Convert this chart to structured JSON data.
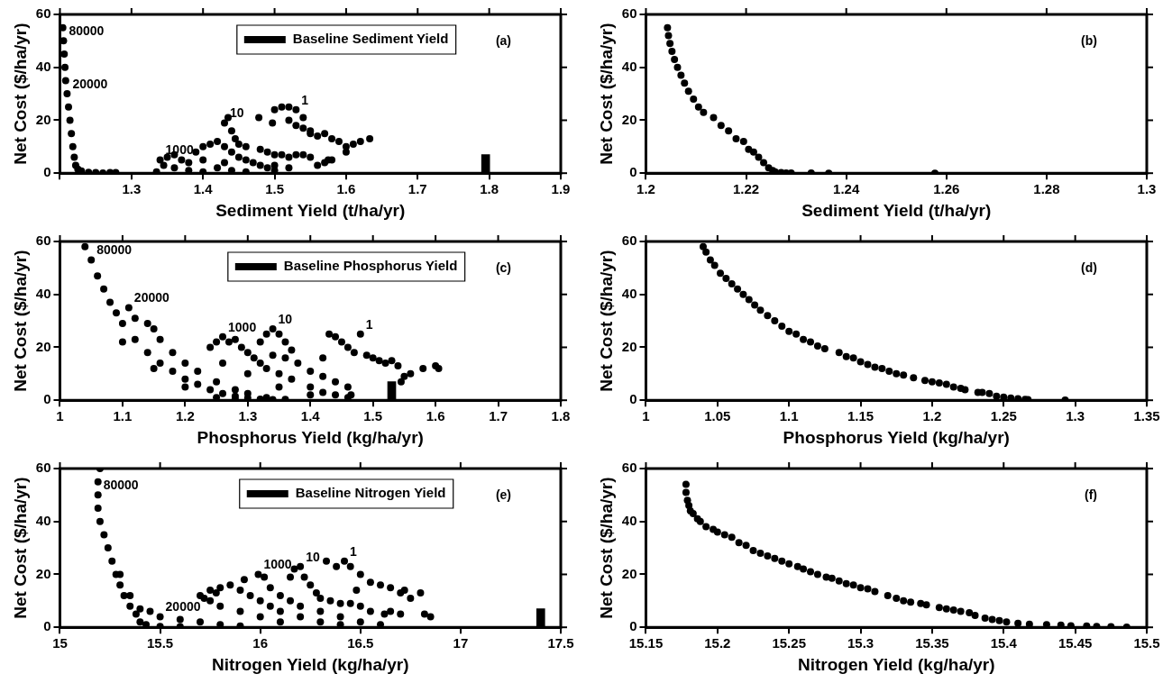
{
  "chart_data": [
    {
      "type": "scatter",
      "xlabel": "Sediment Yield (t/ha/yr)",
      "ylabel": "Net Cost ($/ha/yr)",
      "xlim": [
        1.2,
        1.9
      ],
      "xticks": [
        {
          "value": 1.2,
          "label": null
        },
        1.3,
        1.4,
        1.5,
        1.6,
        1.7,
        1.8,
        1.9
      ],
      "ylim": [
        0,
        60
      ],
      "yticks": [
        0,
        20,
        40,
        60
      ],
      "marker": "circle",
      "legend": "top",
      "annotations": [
        "(a)",
        {
          "text": "80000",
          "x": 1.205,
          "y": 50
        },
        {
          "text": "20000",
          "x": 1.21,
          "y": 30
        },
        {
          "text": "1000",
          "x": 1.34,
          "y": 5
        },
        {
          "text": "10",
          "x": 1.43,
          "y": 19
        },
        {
          "text": "1",
          "x": 1.53,
          "y": 24
        }
      ],
      "series": [
        {
          "type": "scatter",
          "color": "#000000",
          "x": [
            1.204,
            1.205,
            1.206,
            1.207,
            1.208,
            1.21,
            1.212,
            1.214,
            1.216,
            1.218,
            1.22,
            1.222,
            1.225,
            1.23,
            1.24,
            1.25,
            1.26,
            1.27,
            1.278,
            1.335,
            1.34,
            1.345,
            1.35,
            1.36,
            1.37,
            1.38,
            1.39,
            1.4,
            1.41,
            1.42,
            1.43,
            1.44,
            1.45,
            1.46,
            1.47,
            1.48,
            1.49,
            1.5,
            1.36,
            1.38,
            1.4,
            1.42,
            1.44,
            1.46,
            1.5,
            1.52,
            1.4,
            1.43,
            1.43,
            1.435,
            1.44,
            1.445,
            1.45,
            1.46,
            1.478,
            1.48,
            1.49,
            1.5,
            1.51,
            1.52,
            1.53,
            1.54,
            1.55,
            1.56,
            1.57,
            1.575,
            1.58,
            1.497,
            1.5,
            1.51,
            1.52,
            1.53,
            1.52,
            1.53,
            1.54,
            1.55,
            1.56,
            1.57,
            1.58,
            1.59,
            1.6,
            1.61,
            1.62,
            1.633,
            1.6,
            1.54,
            1.55
          ],
          "values": [
            55,
            50,
            45,
            40,
            35,
            30,
            25,
            20,
            15,
            10,
            6,
            3,
            1.5,
            0.8,
            0.3,
            0.2,
            0.1,
            0.2,
            0.2,
            0.5,
            5,
            3,
            6,
            7,
            5,
            4,
            8,
            10,
            11,
            12,
            10,
            8,
            6,
            5,
            4,
            3,
            2,
            1,
            2,
            1,
            0.5,
            2,
            1,
            0.5,
            3,
            2,
            5,
            4,
            19,
            21,
            16,
            13,
            11,
            10,
            21,
            9,
            8,
            7,
            7,
            6,
            7,
            7,
            6,
            3,
            4,
            5,
            5,
            19,
            24,
            25,
            25,
            24,
            20,
            18,
            17,
            16,
            14,
            15,
            13,
            12,
            10,
            11,
            12,
            13,
            8,
            21,
            15
          ]
        },
        {
          "type": "bar",
          "name": "Baseline Sediment Yield",
          "color": "#000000",
          "x": [
            1.795
          ],
          "values": [
            7
          ]
        }
      ]
    },
    {
      "type": "scatter",
      "xlabel": "Sediment Yield (t/ha/yr)",
      "ylabel": "Net Cost ($/ha/yr)",
      "xlim": [
        1.2,
        1.3
      ],
      "xticks": [
        1.2,
        1.22,
        1.24,
        1.26,
        1.28,
        1.3
      ],
      "ylim": [
        0,
        60
      ],
      "yticks": [
        0,
        20,
        40,
        60
      ],
      "marker": "circle",
      "annotations": [
        "(b)"
      ],
      "series": [
        {
          "type": "scatter",
          "color": "#000000",
          "x": [
            1.2043,
            1.2045,
            1.2048,
            1.2052,
            1.2057,
            1.2063,
            1.207,
            1.2077,
            1.2085,
            1.2095,
            1.2105,
            1.2115,
            1.2135,
            1.215,
            1.2165,
            1.218,
            1.2195,
            1.2205,
            1.2215,
            1.2225,
            1.2235,
            1.2245,
            1.2253,
            1.2258,
            1.227,
            1.228,
            1.229,
            1.233,
            1.2365,
            1.2577
          ],
          "values": [
            55,
            52,
            49,
            46,
            43,
            40,
            37,
            34,
            31,
            28,
            25,
            23,
            21,
            18,
            16,
            13,
            12,
            9,
            8,
            6,
            4,
            2,
            1,
            0.5,
            0.2,
            0.1,
            0.1,
            0.1,
            0,
            0
          ]
        }
      ]
    },
    {
      "type": "scatter",
      "xlabel": "Phosphorus Yield (kg/ha/yr)",
      "ylabel": "Net Cost ($/ha/yr)",
      "xlim": [
        1,
        1.8
      ],
      "xticks": [
        1,
        1.1,
        1.2,
        1.3,
        1.4,
        1.5,
        1.6,
        1.7,
        1.8
      ],
      "ylim": [
        0,
        60
      ],
      "yticks": [
        0,
        20,
        40,
        60
      ],
      "marker": "circle",
      "legend": "top",
      "annotations": [
        "(c)",
        {
          "text": "80000",
          "x": 1.05,
          "y": 53
        },
        {
          "text": "20000",
          "x": 1.11,
          "y": 35
        },
        {
          "text": "1000",
          "x": 1.26,
          "y": 24
        },
        {
          "text": "10",
          "x": 1.34,
          "y": 27
        },
        {
          "text": "1",
          "x": 1.48,
          "y": 25
        }
      ],
      "series": [
        {
          "type": "scatter",
          "color": "#000000",
          "x": [
            1.04,
            1.05,
            1.06,
            1.07,
            1.08,
            1.09,
            1.1,
            1.12,
            1.14,
            1.16,
            1.18,
            1.2,
            1.22,
            1.24,
            1.26,
            1.28,
            1.3,
            1.32,
            1.34,
            1.1,
            1.15,
            1.2,
            1.25,
            1.28,
            1.11,
            1.12,
            1.14,
            1.15,
            1.16,
            1.18,
            1.2,
            1.22,
            1.25,
            1.28,
            1.3,
            1.33,
            1.36,
            1.24,
            1.25,
            1.26,
            1.27,
            1.28,
            1.29,
            1.3,
            1.31,
            1.32,
            1.33,
            1.35,
            1.37,
            1.4,
            1.42,
            1.44,
            1.46,
            1.26,
            1.3,
            1.35,
            1.4,
            1.32,
            1.33,
            1.34,
            1.35,
            1.36,
            1.37,
            1.38,
            1.4,
            1.42,
            1.44,
            1.46,
            1.465,
            1.34,
            1.36,
            1.42,
            1.43,
            1.44,
            1.45,
            1.46,
            1.47,
            1.48,
            1.49,
            1.5,
            1.51,
            1.52,
            1.53,
            1.54,
            1.55,
            1.56,
            1.58,
            1.6,
            1.605,
            1.545
          ],
          "values": [
            58,
            53,
            47,
            42,
            37,
            33,
            29,
            23,
            18,
            14,
            11,
            8,
            6,
            4,
            2.5,
            1.5,
            0.8,
            0.4,
            0.2,
            22,
            12,
            5,
            1,
            0.3,
            35,
            31,
            29,
            27,
            23,
            18,
            14,
            11,
            7,
            4,
            2.5,
            1,
            0.3,
            20,
            22,
            24,
            22,
            23,
            20,
            18,
            16,
            14,
            12,
            10,
            8,
            5,
            3,
            2,
            1,
            14,
            10,
            5,
            2,
            22,
            25,
            27,
            25,
            22,
            19,
            14,
            11,
            9,
            7,
            5,
            2,
            17,
            16,
            16,
            25,
            24,
            22,
            20,
            18,
            25,
            17,
            16,
            15,
            14,
            15,
            13,
            9,
            10,
            12,
            13,
            12,
            7
          ]
        },
        {
          "type": "bar",
          "name": "Baseline Phosphorus Yield",
          "color": "#000000",
          "x": [
            1.53
          ],
          "values": [
            7
          ]
        }
      ]
    },
    {
      "type": "scatter",
      "xlabel": "Phosphorus Yield (kg/ha/yr)",
      "ylabel": "Net Cost ($/ha/yr)",
      "xlim": [
        1,
        1.35
      ],
      "xticks": [
        1,
        1.05,
        1.1,
        1.15,
        1.2,
        1.25,
        1.3,
        1.35
      ],
      "ylim": [
        0,
        60
      ],
      "yticks": [
        0,
        20,
        40,
        60
      ],
      "marker": "circle",
      "annotations": [
        "(d)"
      ],
      "series": [
        {
          "type": "scatter",
          "color": "#000000",
          "x": [
            1.04,
            1.042,
            1.045,
            1.048,
            1.052,
            1.056,
            1.06,
            1.064,
            1.068,
            1.072,
            1.076,
            1.08,
            1.085,
            1.09,
            1.095,
            1.1,
            1.105,
            1.11,
            1.115,
            1.12,
            1.125,
            1.135,
            1.14,
            1.145,
            1.15,
            1.155,
            1.16,
            1.165,
            1.17,
            1.175,
            1.18,
            1.187,
            1.195,
            1.2,
            1.205,
            1.21,
            1.215,
            1.22,
            1.223,
            1.232,
            1.235,
            1.24,
            1.245,
            1.25,
            1.255,
            1.26,
            1.265,
            1.267,
            1.293
          ],
          "values": [
            58,
            56,
            53,
            51,
            48,
            46,
            44,
            42,
            40,
            38,
            36,
            34,
            32,
            30,
            28,
            26,
            25,
            23,
            22,
            20.5,
            19.5,
            18,
            16.5,
            16,
            14.5,
            13.5,
            12.5,
            12,
            11,
            10,
            9.5,
            8.5,
            7.5,
            7,
            6.5,
            6,
            5,
            4.5,
            4,
            3,
            3,
            2.5,
            1.5,
            1.2,
            0.8,
            0.6,
            0.3,
            0.2,
            0.1
          ]
        }
      ]
    },
    {
      "type": "scatter",
      "xlabel": "Nitrogen Yield (kg/ha/yr)",
      "ylabel": "Net Cost ($/ha/yr)",
      "xlim": [
        15,
        17.5
      ],
      "xticks": [
        15,
        15.5,
        16,
        16.5,
        17,
        17.5
      ],
      "ylim": [
        0,
        60
      ],
      "yticks": [
        0,
        20,
        40,
        60
      ],
      "marker": "circle",
      "legend": "top",
      "annotations": [
        "(e)",
        {
          "text": "80000",
          "x": 15.19,
          "y": 50
        },
        {
          "text": "20000",
          "x": 15.5,
          "y": 4
        },
        {
          "text": "1000",
          "x": 15.99,
          "y": 20
        },
        {
          "text": "10",
          "x": 16.2,
          "y": 23
        },
        {
          "text": "1",
          "x": 16.42,
          "y": 25
        }
      ],
      "series": [
        {
          "type": "scatter",
          "color": "#000000",
          "x": [
            15.2,
            15.19,
            15.19,
            15.19,
            15.2,
            15.22,
            15.24,
            15.26,
            15.28,
            15.3,
            15.32,
            15.35,
            15.38,
            15.4,
            15.43,
            15.5,
            15.6,
            15.3,
            15.35,
            15.4,
            15.45,
            15.5,
            15.6,
            15.7,
            15.8,
            15.9,
            15.7,
            15.72,
            15.75,
            15.78,
            15.8,
            15.85,
            15.9,
            15.95,
            16,
            16.05,
            16.1,
            16.2,
            16.3,
            16.4,
            15.8,
            15.9,
            16,
            16.1,
            15.75,
            15.92,
            15.99,
            16.02,
            16.05,
            16.1,
            16.15,
            16.2,
            16.3,
            16.4,
            16.5,
            16.6,
            16.15,
            16.17,
            16.2,
            16.22,
            16.25,
            16.28,
            16.3,
            16.35,
            16.4,
            16.45,
            16.5,
            16.55,
            16.62,
            16.65,
            16.7,
            16.33,
            16.38,
            16.42,
            16.45,
            16.5,
            16.55,
            16.6,
            16.65,
            16.7,
            16.72,
            16.75,
            16.8,
            16.82,
            16.85,
            16.48
          ],
          "values": [
            60,
            55,
            50,
            45,
            40,
            35,
            30,
            25,
            20,
            16,
            12,
            8,
            5,
            2,
            1,
            0.3,
            0.2,
            20,
            12,
            7,
            6,
            4,
            3,
            2,
            1,
            0.5,
            12,
            11,
            14,
            13,
            15,
            16,
            14,
            12,
            10,
            8,
            6,
            4,
            2,
            1,
            8,
            6,
            4,
            2,
            10,
            18,
            20,
            19,
            15,
            12,
            10,
            8,
            6,
            4,
            2,
            1,
            19,
            22,
            23,
            19,
            16,
            13,
            11,
            10,
            9,
            9,
            8,
            6,
            5,
            6,
            5,
            25,
            23,
            25,
            23,
            20,
            17,
            16,
            15,
            13,
            14,
            11,
            13,
            5,
            4,
            14
          ]
        },
        {
          "type": "bar",
          "name": "Baseline Nitrogen Yield",
          "color": "#000000",
          "x": [
            17.4
          ],
          "values": [
            7
          ]
        }
      ]
    },
    {
      "type": "scatter",
      "xlabel": "Nitrogen Yield (kg/ha/yr)",
      "ylabel": "Net Cost ($/ha/yr)",
      "xlim": [
        15.15,
        15.5
      ],
      "xticks": [
        15.15,
        15.2,
        15.25,
        15.3,
        15.35,
        15.4,
        15.45,
        15.5
      ],
      "ylim": [
        0,
        60
      ],
      "yticks": [
        0,
        20,
        40,
        60
      ],
      "marker": "circle",
      "annotations": [
        "(f)"
      ],
      "series": [
        {
          "type": "scatter",
          "color": "#000000",
          "x": [
            15.178,
            15.178,
            15.179,
            15.18,
            15.181,
            15.183,
            15.186,
            15.188,
            15.192,
            15.197,
            15.2,
            15.205,
            15.21,
            15.215,
            15.22,
            15.225,
            15.23,
            15.235,
            15.24,
            15.245,
            15.25,
            15.256,
            15.26,
            15.265,
            15.27,
            15.276,
            15.28,
            15.285,
            15.29,
            15.295,
            15.3,
            15.305,
            15.31,
            15.319,
            15.325,
            15.33,
            15.335,
            15.342,
            15.346,
            15.355,
            15.36,
            15.365,
            15.37,
            15.376,
            15.38,
            15.387,
            15.392,
            15.397,
            15.402,
            15.41,
            15.418,
            15.43,
            15.44,
            15.447,
            15.458,
            15.465,
            15.475,
            15.486
          ],
          "values": [
            54,
            51,
            48,
            46,
            44,
            43,
            41,
            40,
            38,
            37,
            36,
            35,
            34,
            32,
            31,
            29,
            28,
            27,
            26,
            25,
            24,
            23,
            22,
            21,
            20,
            19,
            18.5,
            17.5,
            16.5,
            16,
            15,
            14.5,
            13.5,
            12,
            11,
            10,
            9.5,
            9,
            8.5,
            7.5,
            7,
            6.5,
            6,
            5.5,
            4.5,
            3.5,
            3,
            2.5,
            2,
            1.5,
            1.2,
            1,
            0.8,
            0.6,
            0.5,
            0.3,
            0.2,
            0.1
          ]
        }
      ]
    }
  ]
}
